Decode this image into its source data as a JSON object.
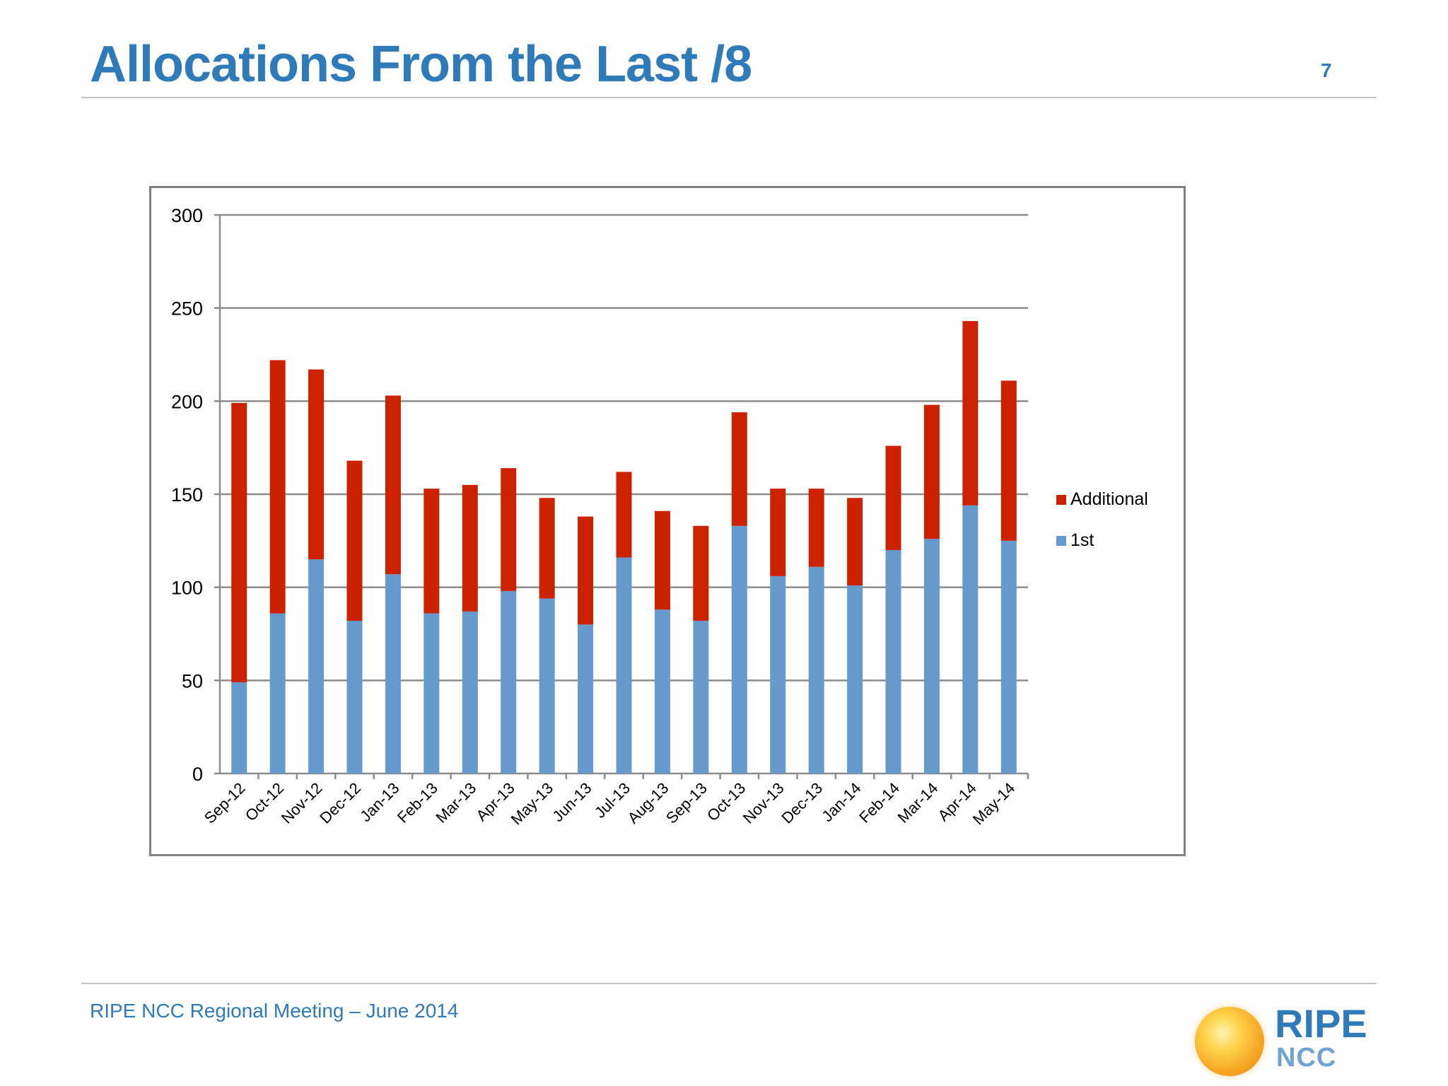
{
  "slide": {
    "title": "Allocations From the Last /8",
    "page_number": "7",
    "footer": "RIPE NCC Regional Meeting – June 2014"
  },
  "logo": {
    "text_main": "RIPE",
    "text_sub": "NCC",
    "icon": "sun-logo-icon"
  },
  "colors": {
    "accent": "#2f7ab9",
    "additional": "#cc2200",
    "first": "#6699cc"
  },
  "chart_data": {
    "type": "bar",
    "stacked": true,
    "categories": [
      "Sep-12",
      "Oct-12",
      "Nov-12",
      "Dec-12",
      "Jan-13",
      "Feb-13",
      "Mar-13",
      "Apr-13",
      "May-13",
      "Jun-13",
      "Jul-13",
      "Aug-13",
      "Sep-13",
      "Oct-13",
      "Nov-13",
      "Dec-13",
      "Jan-14",
      "Feb-14",
      "Mar-14",
      "Apr-14",
      "May-14"
    ],
    "series": [
      {
        "name": "1st",
        "color": "#6699cc",
        "values": [
          49,
          86,
          115,
          82,
          107,
          86,
          87,
          98,
          94,
          80,
          116,
          88,
          82,
          133,
          106,
          111,
          101,
          120,
          126,
          144,
          125
        ]
      },
      {
        "name": "Additional",
        "color": "#cc2200",
        "values": [
          150,
          136,
          102,
          86,
          96,
          67,
          68,
          66,
          54,
          58,
          46,
          53,
          51,
          61,
          47,
          42,
          47,
          56,
          72,
          99,
          86
        ]
      }
    ],
    "ylim": [
      0,
      300
    ],
    "yticks": [
      0,
      50,
      100,
      150,
      200,
      250,
      300
    ],
    "grid": true,
    "legend_position": "right",
    "legend_order": [
      "Additional",
      "1st"
    ],
    "title": "",
    "xlabel": "",
    "ylabel": ""
  }
}
